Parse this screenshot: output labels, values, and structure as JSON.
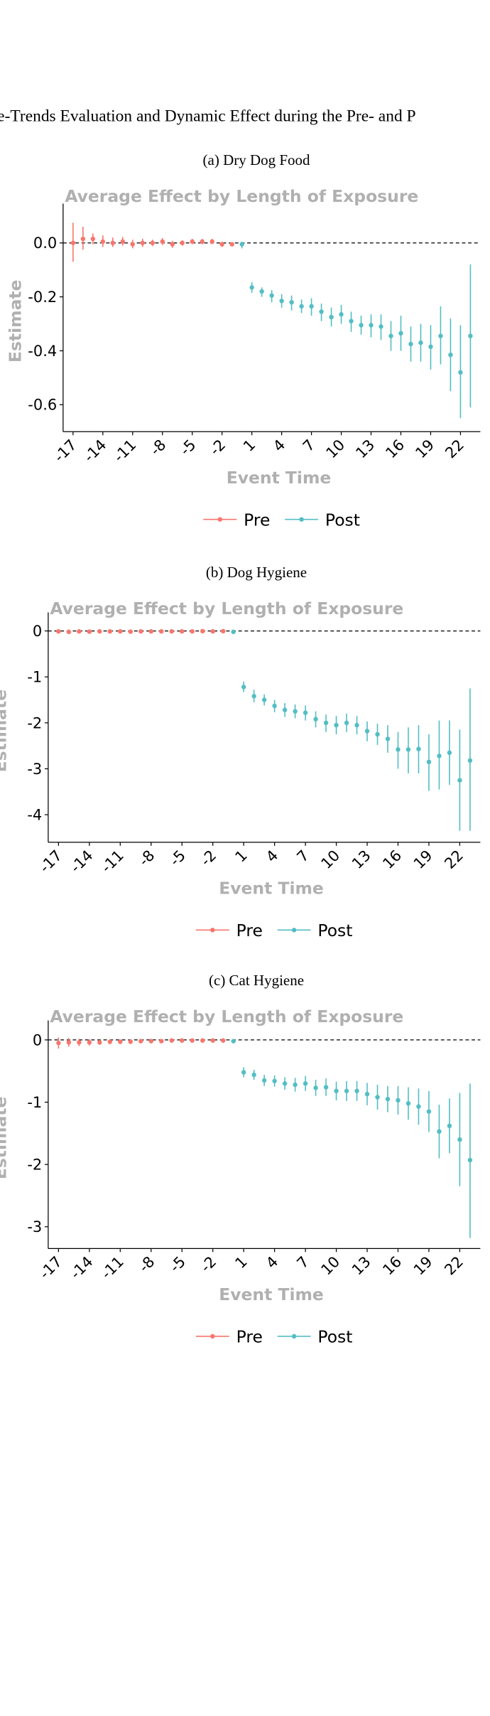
{
  "figure_title": "Pre-Trends Evaluation and Dynamic Effect during the Pre- and P",
  "colors": {
    "pre": "#F8766D",
    "post": "#53BEC4",
    "axis_title": "#B0B0B0"
  },
  "chart_data": [
    {
      "caption": "(a) Dry Dog Food",
      "type": "scatter",
      "title": "Average Effect by Length of Exposure",
      "xlabel": "Event Time",
      "ylabel": "Estimate",
      "xlim": [
        -18,
        24
      ],
      "ylim": [
        -0.7,
        0.12
      ],
      "x_ticks": [
        -17,
        -14,
        -11,
        -8,
        -5,
        -2,
        1,
        4,
        7,
        10,
        13,
        16,
        19,
        22
      ],
      "x_tick_labels": [
        "-17",
        "-14",
        "-11",
        "-8",
        "-5",
        "-2",
        "1",
        "4",
        "7",
        "10",
        "13",
        "16",
        "19",
        "22"
      ],
      "y_ticks": [
        0,
        -0.2,
        -0.4,
        -0.6
      ],
      "y_tick_labels": [
        "0.0",
        "-0.2",
        "-0.4",
        "-0.6"
      ],
      "legend": {
        "position": "bottom",
        "entries": [
          "Pre",
          "Post"
        ]
      },
      "reference_line": 0,
      "series": [
        {
          "name": "Pre",
          "x": [
            -17,
            -16,
            -15,
            -14,
            -13,
            -12,
            -11,
            -10,
            -9,
            -8,
            -7,
            -6,
            -5,
            -4,
            -3,
            -2,
            -1
          ],
          "y": [
            0.0,
            0.015,
            0.015,
            0.005,
            0.0,
            0.005,
            -0.005,
            0.0,
            0.0,
            0.005,
            -0.005,
            0.0,
            0.005,
            0.005,
            0.005,
            -0.005,
            -0.005
          ],
          "lower": [
            -0.07,
            -0.025,
            -0.005,
            -0.015,
            -0.015,
            -0.01,
            -0.02,
            -0.015,
            -0.012,
            -0.008,
            -0.018,
            -0.01,
            -0.005,
            -0.005,
            -0.005,
            -0.015,
            -0.012
          ],
          "upper": [
            0.075,
            0.06,
            0.035,
            0.028,
            0.02,
            0.022,
            0.012,
            0.015,
            0.012,
            0.018,
            0.008,
            0.01,
            0.015,
            0.015,
            0.015,
            0.005,
            0.002
          ]
        },
        {
          "name": "Post",
          "x": [
            0,
            1,
            2,
            3,
            4,
            5,
            6,
            7,
            8,
            9,
            10,
            11,
            12,
            13,
            14,
            15,
            16,
            17,
            18,
            19,
            20,
            21,
            22,
            23
          ],
          "y": [
            -0.005,
            -0.165,
            -0.18,
            -0.195,
            -0.215,
            -0.22,
            -0.235,
            -0.235,
            -0.255,
            -0.275,
            -0.265,
            -0.29,
            -0.305,
            -0.305,
            -0.31,
            -0.345,
            -0.335,
            -0.375,
            -0.37,
            -0.385,
            -0.345,
            -0.415,
            -0.48,
            -0.345
          ],
          "lower": [
            -0.02,
            -0.185,
            -0.2,
            -0.22,
            -0.24,
            -0.25,
            -0.26,
            -0.27,
            -0.29,
            -0.31,
            -0.3,
            -0.33,
            -0.34,
            -0.35,
            -0.36,
            -0.4,
            -0.4,
            -0.44,
            -0.44,
            -0.47,
            -0.45,
            -0.55,
            -0.65,
            -0.61
          ],
          "upper": [
            0.005,
            -0.145,
            -0.165,
            -0.175,
            -0.19,
            -0.195,
            -0.21,
            -0.205,
            -0.225,
            -0.24,
            -0.23,
            -0.255,
            -0.27,
            -0.265,
            -0.265,
            -0.29,
            -0.27,
            -0.31,
            -0.3,
            -0.305,
            -0.235,
            -0.28,
            -0.305,
            -0.08
          ]
        }
      ]
    },
    {
      "caption": "(b) Dog Hygiene",
      "type": "scatter",
      "title": "Average Effect by Length of Exposure",
      "xlabel": "Event Time",
      "ylabel": "Estimate",
      "xlim": [
        -18,
        24
      ],
      "ylim": [
        -4.6,
        0.25
      ],
      "x_ticks": [
        -17,
        -14,
        -11,
        -8,
        -5,
        -2,
        1,
        4,
        7,
        10,
        13,
        16,
        19,
        22
      ],
      "x_tick_labels": [
        "-17",
        "-14",
        "-11",
        "-8",
        "-5",
        "-2",
        "1",
        "4",
        "7",
        "10",
        "13",
        "16",
        "19",
        "22"
      ],
      "y_ticks": [
        0,
        -1,
        -2,
        -3,
        -4
      ],
      "y_tick_labels": [
        "0",
        "-1",
        "-2",
        "-3",
        "-4"
      ],
      "legend": {
        "position": "bottom",
        "entries": [
          "Pre",
          "Post"
        ]
      },
      "reference_line": 0,
      "series": [
        {
          "name": "Pre",
          "x": [
            -17,
            -16,
            -15,
            -14,
            -13,
            -12,
            -11,
            -10,
            -9,
            -8,
            -7,
            -6,
            -5,
            -4,
            -3,
            -2,
            -1
          ],
          "y": [
            -0.01,
            -0.02,
            -0.01,
            -0.015,
            -0.01,
            -0.01,
            -0.01,
            -0.015,
            -0.01,
            -0.01,
            -0.01,
            -0.01,
            -0.01,
            -0.01,
            -0.005,
            -0.01,
            -0.005
          ],
          "lower": [
            -0.06,
            -0.07,
            -0.05,
            -0.05,
            -0.045,
            -0.04,
            -0.04,
            -0.045,
            -0.04,
            -0.04,
            -0.035,
            -0.035,
            -0.035,
            -0.035,
            -0.03,
            -0.035,
            -0.03
          ],
          "upper": [
            0.04,
            0.03,
            0.03,
            0.02,
            0.025,
            0.02,
            0.02,
            0.015,
            0.02,
            0.02,
            0.015,
            0.015,
            0.015,
            0.015,
            0.02,
            0.015,
            0.02
          ]
        },
        {
          "name": "Post",
          "x": [
            0,
            1,
            2,
            3,
            4,
            5,
            6,
            7,
            8,
            9,
            10,
            11,
            12,
            13,
            14,
            15,
            16,
            17,
            18,
            19,
            20,
            21,
            22,
            23
          ],
          "y": [
            -0.02,
            -1.22,
            -1.42,
            -1.5,
            -1.63,
            -1.72,
            -1.75,
            -1.78,
            -1.92,
            -2.0,
            -2.05,
            -2.0,
            -2.05,
            -2.18,
            -2.25,
            -2.35,
            -2.58,
            -2.58,
            -2.57,
            -2.85,
            -2.72,
            -2.65,
            -3.25,
            -2.82
          ],
          "lower": [
            -0.05,
            -1.33,
            -1.55,
            -1.62,
            -1.77,
            -1.87,
            -1.9,
            -1.95,
            -2.1,
            -2.2,
            -2.25,
            -2.2,
            -2.25,
            -2.4,
            -2.48,
            -2.65,
            -3.0,
            -3.1,
            -3.1,
            -3.48,
            -3.45,
            -3.35,
            -4.35,
            -4.35
          ],
          "upper": [
            0.01,
            -1.1,
            -1.28,
            -1.38,
            -1.5,
            -1.57,
            -1.6,
            -1.62,
            -1.75,
            -1.82,
            -1.85,
            -1.8,
            -1.85,
            -1.97,
            -2.02,
            -2.05,
            -2.2,
            -2.1,
            -2.05,
            -2.25,
            -1.95,
            -1.95,
            -2.15,
            -1.25
          ]
        }
      ]
    },
    {
      "caption": "(c) Cat Hygiene",
      "type": "scatter",
      "title": "Average Effect by Length of Exposure",
      "xlabel": "Event Time",
      "ylabel": "Estimate",
      "xlim": [
        -18,
        24
      ],
      "ylim": [
        -3.35,
        0.2
      ],
      "x_ticks": [
        -17,
        -14,
        -11,
        -8,
        -5,
        -2,
        1,
        4,
        7,
        10,
        13,
        16,
        19,
        22
      ],
      "x_tick_labels": [
        "-17",
        "-14",
        "-11",
        "-8",
        "-5",
        "-2",
        "1",
        "4",
        "7",
        "10",
        "13",
        "16",
        "19",
        "22"
      ],
      "y_ticks": [
        0,
        -1,
        -2,
        -3
      ],
      "y_tick_labels": [
        "0",
        "-1",
        "-2",
        "-3"
      ],
      "legend": {
        "position": "bottom",
        "entries": [
          "Pre",
          "Post"
        ]
      },
      "reference_line": 0,
      "series": [
        {
          "name": "Pre",
          "x": [
            -17,
            -16,
            -15,
            -14,
            -13,
            -12,
            -11,
            -10,
            -9,
            -8,
            -7,
            -6,
            -5,
            -4,
            -3,
            -2,
            -1
          ],
          "y": [
            -0.05,
            -0.04,
            -0.04,
            -0.04,
            -0.04,
            -0.03,
            -0.03,
            -0.03,
            -0.02,
            -0.02,
            -0.02,
            -0.01,
            -0.01,
            -0.01,
            -0.01,
            -0.01,
            -0.01
          ],
          "lower": [
            -0.14,
            -0.11,
            -0.1,
            -0.09,
            -0.08,
            -0.07,
            -0.06,
            -0.06,
            -0.05,
            -0.05,
            -0.045,
            -0.04,
            -0.035,
            -0.035,
            -0.03,
            -0.03,
            -0.03
          ],
          "upper": [
            0.04,
            0.03,
            0.02,
            0.01,
            0.0,
            0.01,
            0.0,
            0.0,
            0.01,
            0.01,
            0.005,
            0.02,
            0.015,
            0.015,
            0.01,
            0.01,
            0.01
          ]
        },
        {
          "name": "Post",
          "x": [
            0,
            1,
            2,
            3,
            4,
            5,
            6,
            7,
            8,
            9,
            10,
            11,
            12,
            13,
            14,
            15,
            16,
            17,
            18,
            19,
            20,
            21,
            22,
            23
          ],
          "y": [
            -0.02,
            -0.52,
            -0.56,
            -0.65,
            -0.66,
            -0.7,
            -0.72,
            -0.7,
            -0.77,
            -0.76,
            -0.82,
            -0.82,
            -0.82,
            -0.87,
            -0.92,
            -0.95,
            -0.97,
            -1.02,
            -1.07,
            -1.15,
            -1.47,
            -1.38,
            -1.6,
            -1.93
          ],
          "lower": [
            -0.04,
            -0.6,
            -0.64,
            -0.74,
            -0.75,
            -0.8,
            -0.83,
            -0.82,
            -0.9,
            -0.9,
            -0.97,
            -0.98,
            -0.98,
            -1.05,
            -1.12,
            -1.16,
            -1.2,
            -1.28,
            -1.36,
            -1.48,
            -1.9,
            -1.82,
            -2.35,
            -3.18
          ],
          "upper": [
            0.0,
            -0.44,
            -0.48,
            -0.56,
            -0.57,
            -0.6,
            -0.61,
            -0.58,
            -0.64,
            -0.62,
            -0.67,
            -0.66,
            -0.66,
            -0.69,
            -0.72,
            -0.74,
            -0.74,
            -0.76,
            -0.78,
            -0.82,
            -1.04,
            -0.94,
            -0.85,
            -0.7
          ]
        }
      ]
    }
  ]
}
